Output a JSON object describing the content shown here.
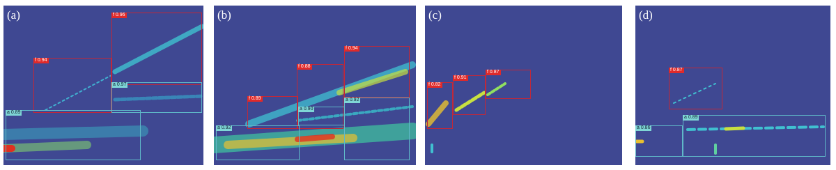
{
  "panels": [
    {
      "label": "(a)",
      "detections": [
        "f 0.96",
        "f 0.94",
        "a 0.97",
        "a 0.89"
      ]
    },
    {
      "label": "(b)",
      "detections": [
        "f 0.89",
        "f 0.88",
        "f 0.94",
        "a 0.92",
        "a 0.90",
        "a 0.92"
      ]
    },
    {
      "label": "(c)",
      "detections": [
        "f 0.82",
        "f 0.91",
        "f 0.87"
      ]
    },
    {
      "label": "(d)",
      "detections": [
        "f 0.87",
        "a 0.86",
        "a 0.89"
      ]
    }
  ]
}
